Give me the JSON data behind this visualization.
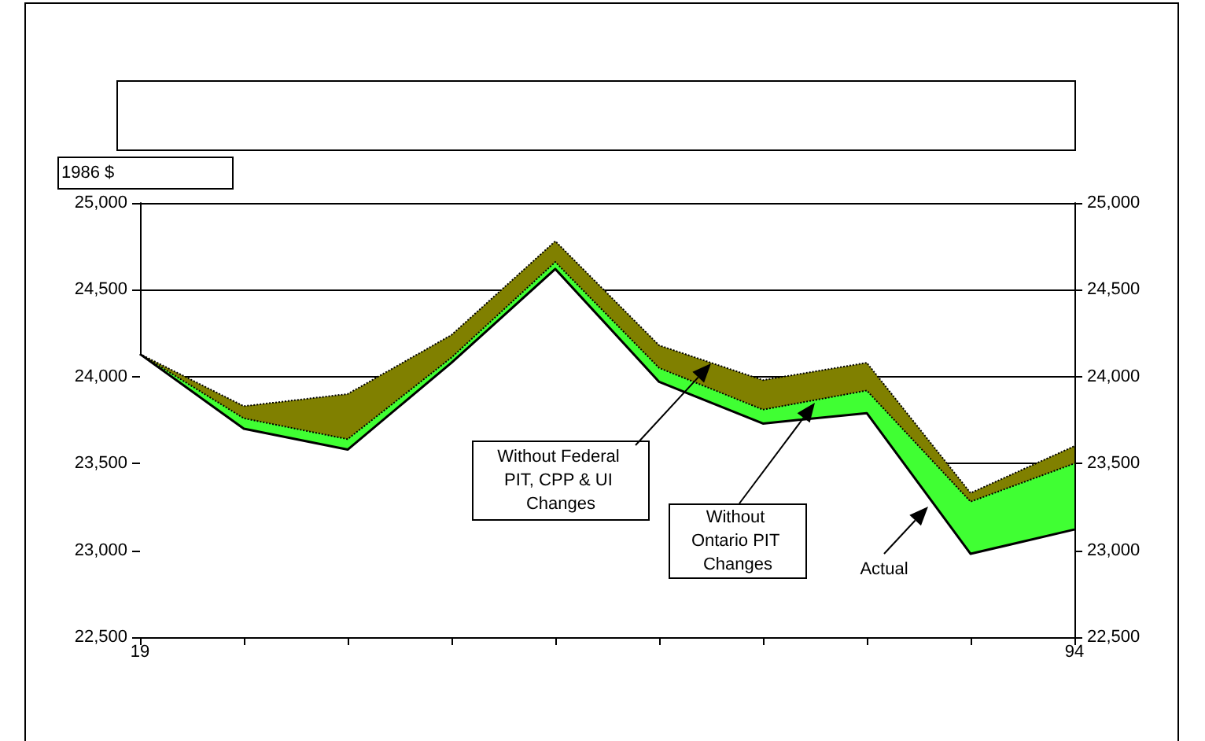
{
  "chart_data": {
    "type": "area",
    "ylabel": "1986 $",
    "categories": [
      "19",
      null,
      null,
      null,
      null,
      null,
      null,
      null,
      null,
      "94"
    ],
    "ylim": [
      22500,
      25000
    ],
    "yticks": [
      {
        "value": 22500,
        "label": "22,500"
      },
      {
        "value": 23000,
        "label": "23,000"
      },
      {
        "value": 23500,
        "label": "23,500"
      },
      {
        "value": 24000,
        "label": "24,000"
      },
      {
        "value": 24500,
        "label": "24,500"
      },
      {
        "value": 25000,
        "label": "25,000"
      }
    ],
    "y2lim": [
      22500,
      25000
    ],
    "y2ticks": [
      {
        "value": 22500,
        "label": "22,500"
      },
      {
        "value": 23000,
        "label": "23,000"
      },
      {
        "value": 23500,
        "label": "23,500"
      },
      {
        "value": 24000,
        "label": "24,000"
      },
      {
        "value": 24500,
        "label": "24,500"
      },
      {
        "value": 25000,
        "label": "25,000"
      }
    ],
    "grid": "y",
    "marker": "none",
    "series": [
      {
        "name": "Without Federal PIT, CPP & UI Changes",
        "color": "#808000",
        "line_style": "dotted",
        "values": [
          24130,
          23830,
          23900,
          24240,
          24780,
          24180,
          23980,
          24080,
          23330,
          23600
        ]
      },
      {
        "name": "Without Ontario PIT Changes",
        "color": "#40ff33",
        "line_style": "dotted",
        "values": [
          24130,
          23760,
          23640,
          24110,
          24660,
          24050,
          23810,
          23920,
          23280,
          23500
        ]
      },
      {
        "name": "Actual",
        "color": "#000000",
        "line_style": "solid",
        "values": [
          24130,
          23700,
          23580,
          24080,
          24620,
          23970,
          23730,
          23790,
          22980,
          23120
        ]
      }
    ]
  }
}
